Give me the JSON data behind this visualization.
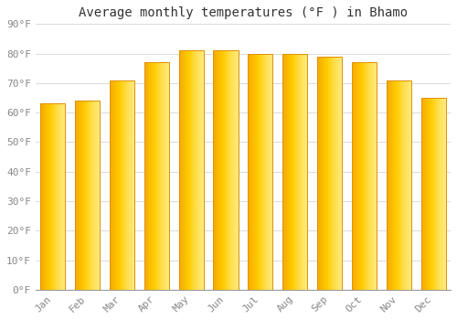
{
  "title": "Average monthly temperatures (°F ) in Bhamo",
  "months": [
    "Jan",
    "Feb",
    "Mar",
    "Apr",
    "May",
    "Jun",
    "Jul",
    "Aug",
    "Sep",
    "Oct",
    "Nov",
    "Dec"
  ],
  "values": [
    63,
    64,
    71,
    77,
    81,
    81,
    80,
    80,
    79,
    77,
    71,
    65
  ],
  "bar_color_left": "#F5A800",
  "bar_color_mid": "#FFCC00",
  "bar_color_right": "#FFD966",
  "bar_edge_color": "#E09000",
  "ylim": [
    0,
    90
  ],
  "yticks": [
    0,
    10,
    20,
    30,
    40,
    50,
    60,
    70,
    80,
    90
  ],
  "ytick_labels": [
    "0°F",
    "10°F",
    "20°F",
    "30°F",
    "40°F",
    "50°F",
    "60°F",
    "70°F",
    "80°F",
    "90°F"
  ],
  "background_color": "#FFFFFF",
  "plot_bg_color": "#FFFFFF",
  "grid_color": "#DDDDDD",
  "font_family": "monospace",
  "title_fontsize": 10,
  "tick_fontsize": 8,
  "tick_color": "#888888"
}
